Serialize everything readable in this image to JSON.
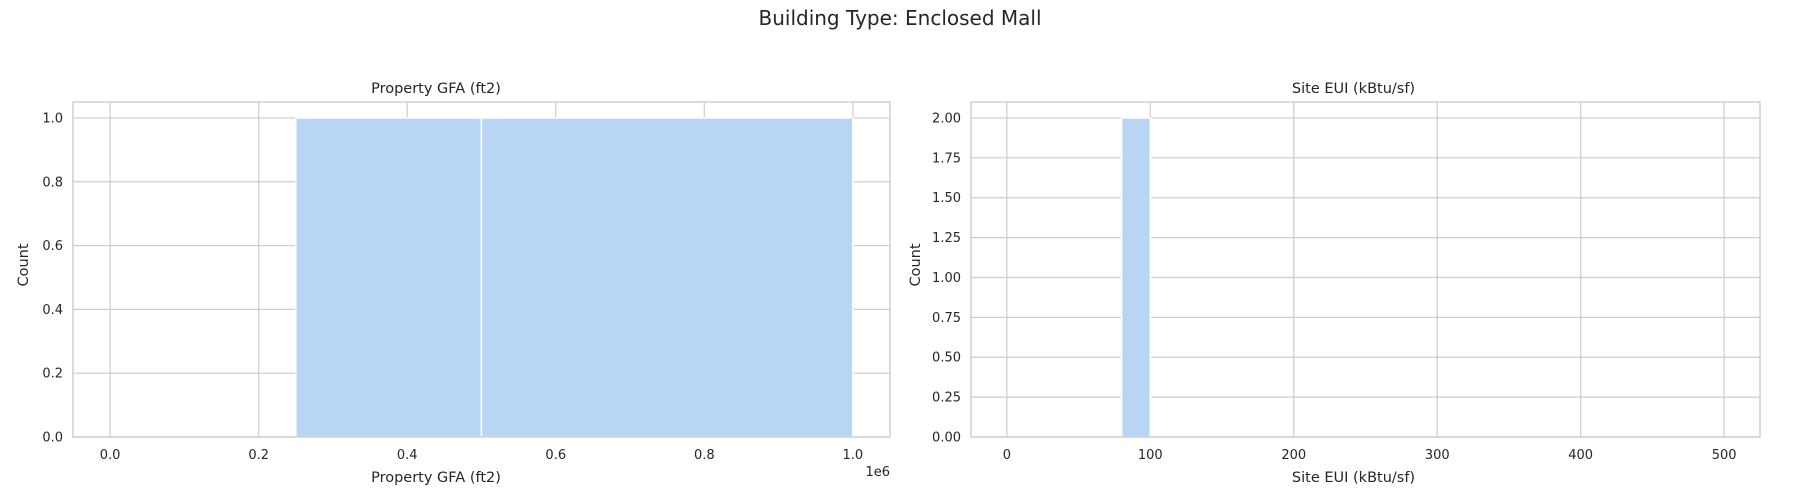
{
  "figure": {
    "suptitle": "Building Type: Enclosed Mall"
  },
  "chart_data": [
    {
      "type": "bar",
      "title": "Property GFA (ft2)",
      "xlabel": "Property GFA (ft2)",
      "ylabel": "Count",
      "offset_label": "1e6",
      "xlim": [
        -50000,
        1050000
      ],
      "ylim": [
        0,
        1.05
      ],
      "xticks": [
        0,
        0.2,
        0.4,
        0.6,
        0.8,
        1.0
      ],
      "xtick_labels": [
        "0.0",
        "0.2",
        "0.4",
        "0.6",
        "0.8",
        "1.0"
      ],
      "xtick_scale": 1000000,
      "yticks": [
        0,
        0.2,
        0.4,
        0.6,
        0.8,
        1.0
      ],
      "ytick_labels": [
        "0.0",
        "0.2",
        "0.4",
        "0.6",
        "0.8",
        "1.0"
      ],
      "grid": true,
      "bins": [
        {
          "x0": 250000,
          "x1": 500000,
          "count": 1
        },
        {
          "x0": 500000,
          "x1": 1000000,
          "count": 1
        }
      ],
      "color": "#b8d6f4"
    },
    {
      "type": "bar",
      "title": "Site EUI (kBtu/sf)",
      "xlabel": "Site EUI (kBtu/sf)",
      "ylabel": "Count",
      "xlim": [
        -25,
        525
      ],
      "ylim": [
        0,
        2.1
      ],
      "xticks": [
        0,
        100,
        200,
        300,
        400,
        500
      ],
      "xtick_labels": [
        "0",
        "100",
        "200",
        "300",
        "400",
        "500"
      ],
      "xtick_scale": 1,
      "yticks": [
        0,
        0.25,
        0.5,
        0.75,
        1.0,
        1.25,
        1.5,
        1.75,
        2.0
      ],
      "ytick_labels": [
        "0.00",
        "0.25",
        "0.50",
        "0.75",
        "1.00",
        "1.25",
        "1.50",
        "1.75",
        "2.00"
      ],
      "grid": true,
      "bins": [
        {
          "x0": 80,
          "x1": 100,
          "count": 2
        }
      ],
      "color": "#b8d6f4"
    }
  ]
}
